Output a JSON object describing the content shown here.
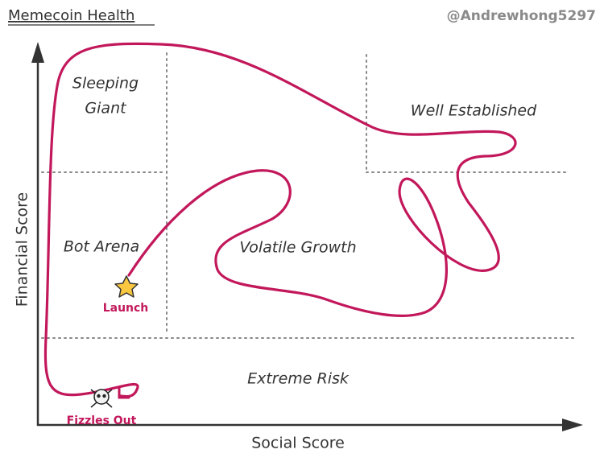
{
  "header": {
    "title": "Memecoin Health",
    "handle": "@Andrewhong5297"
  },
  "axes": {
    "x_label": "Social Score",
    "y_label": "Financial Score"
  },
  "regions": {
    "sleeping_giant": [
      "Sleeping",
      "Giant"
    ],
    "well_established": "Well Established",
    "bot_arena": "Bot Arena",
    "volatile_growth": "Volatile Growth",
    "extreme_risk": "Extreme Risk"
  },
  "markers": {
    "start": "Launch",
    "end": "Fizzles Out"
  }
}
